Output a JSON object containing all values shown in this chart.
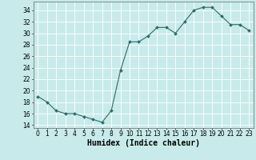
{
  "x": [
    0,
    1,
    2,
    3,
    4,
    5,
    6,
    7,
    8,
    9,
    10,
    11,
    12,
    13,
    14,
    15,
    16,
    17,
    18,
    19,
    20,
    21,
    22,
    23
  ],
  "y": [
    19.0,
    18.0,
    16.5,
    16.0,
    16.0,
    15.5,
    15.0,
    14.5,
    16.5,
    23.5,
    28.5,
    28.5,
    29.5,
    31.0,
    31.0,
    30.0,
    32.0,
    34.0,
    34.5,
    34.5,
    33.0,
    31.5,
    31.5,
    30.5
  ],
  "xlabel": "Humidex (Indice chaleur)",
  "bg_color": "#c8eaea",
  "grid_color": "#ffffff",
  "line_color": "#2e6b6b",
  "marker_color": "#2e6b6b",
  "ylim": [
    13.5,
    35.5
  ],
  "xlim": [
    -0.5,
    23.5
  ],
  "yticks": [
    14,
    16,
    18,
    20,
    22,
    24,
    26,
    28,
    30,
    32,
    34
  ],
  "xtick_labels": [
    "0",
    "1",
    "2",
    "3",
    "4",
    "5",
    "6",
    "7",
    "8",
    "9",
    "10",
    "11",
    "12",
    "13",
    "14",
    "15",
    "16",
    "17",
    "18",
    "19",
    "20",
    "21",
    "22",
    "23"
  ],
  "tick_fontsize": 5.5,
  "xlabel_fontsize": 7
}
